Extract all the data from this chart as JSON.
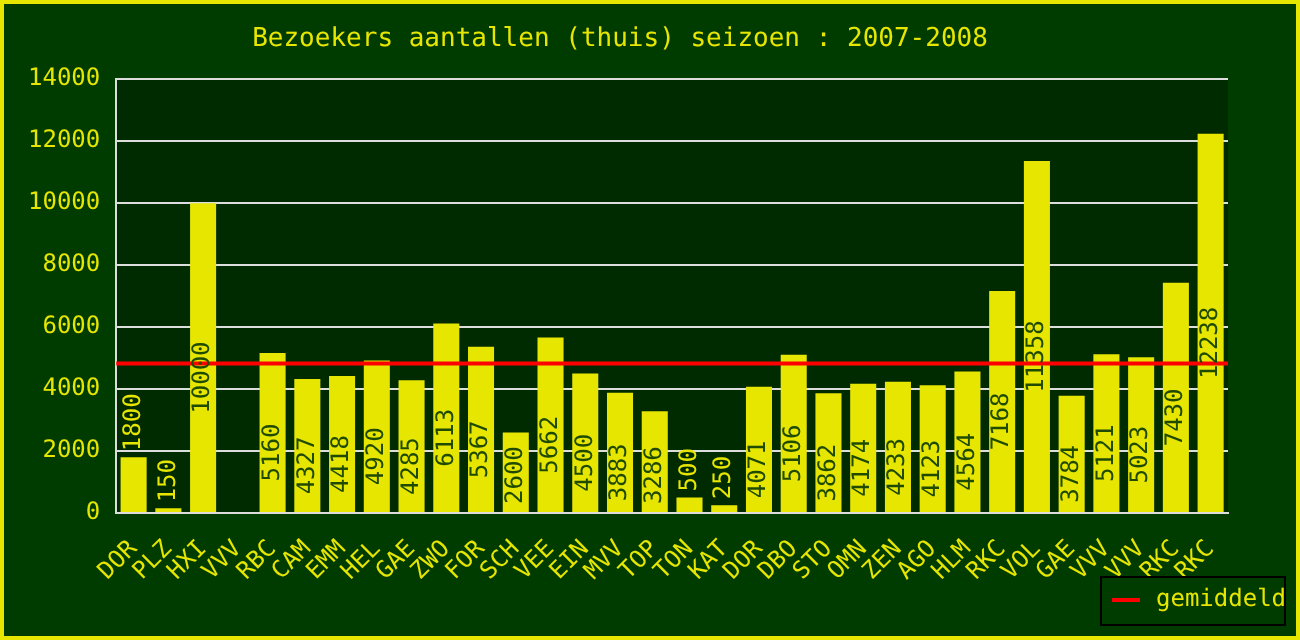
{
  "chart_data": {
    "type": "bar",
    "title": "Bezoekers aantallen (thuis) seizoen : 2007-2008",
    "categories": [
      "DOR",
      "PLZ",
      "HXI",
      "VVV",
      "RBC",
      "CAM",
      "EMM",
      "HEL",
      "GAE",
      "ZWO",
      "FOR",
      "SCH",
      "VEE",
      "EIN",
      "MVV",
      "TOP",
      "TON",
      "KAT",
      "DOR",
      "DBO",
      "STO",
      "OMN",
      "ZEN",
      "AGO",
      "HLM",
      "RKC",
      "VOL",
      "GAE",
      "VVV",
      "VVV",
      "RKC",
      "RKC"
    ],
    "values": [
      1800,
      150,
      10000,
      null,
      5160,
      4327,
      4418,
      4920,
      4285,
      6113,
      5367,
      2600,
      5662,
      4500,
      3883,
      3286,
      500,
      250,
      4071,
      5106,
      3862,
      4174,
      4233,
      4123,
      4564,
      7168,
      11358,
      3784,
      5121,
      5023,
      7430,
      12238
    ],
    "color": "#e6e600",
    "data_labels": true,
    "ylim": [
      0,
      14000
    ],
    "yticks": [
      0,
      2000,
      4000,
      6000,
      8000,
      10000,
      12000,
      14000
    ],
    "grid": "y",
    "ref_lines": [
      {
        "axis": "y",
        "value": 4822,
        "label": "gemiddeld",
        "color": "#ff0000"
      }
    ],
    "legend": "bottom right"
  }
}
